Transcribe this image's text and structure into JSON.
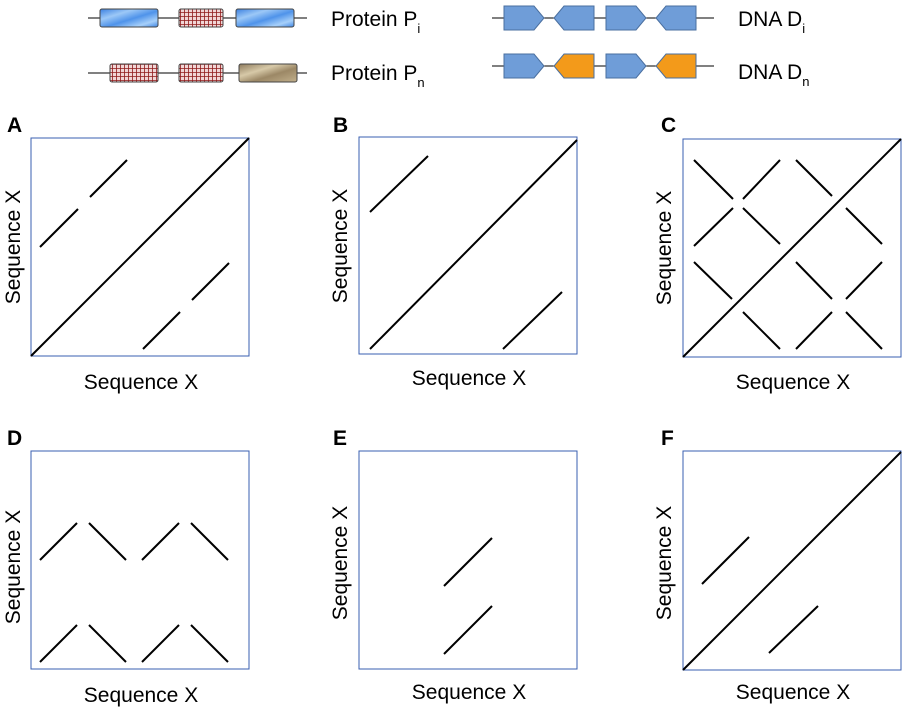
{
  "legend": {
    "protein_i": {
      "label": "Protein P",
      "subscript": "i",
      "domains": [
        "water",
        "grid",
        "water"
      ]
    },
    "protein_n": {
      "label": "Protein P",
      "subscript": "n",
      "domains": [
        "grid",
        "grid",
        "stone"
      ]
    },
    "dna_i": {
      "label": "DNA D",
      "subscript": "i",
      "arrows": [
        "right",
        "left",
        "right",
        "left"
      ],
      "arrow_colors": [
        "#6f9dd8",
        "#6f9dd8",
        "#6f9dd8",
        "#6f9dd8"
      ]
    },
    "dna_n": {
      "label": "DNA D",
      "subscript": "n",
      "arrows": [
        "right",
        "left",
        "right",
        "left"
      ],
      "arrow_colors": [
        "#6f9dd8",
        "#f39a1a",
        "#6f9dd8",
        "#f39a1a"
      ]
    }
  },
  "colors": {
    "dna_blue": "#6f9dd8",
    "dna_orange": "#f39a1a",
    "frame_border": "#3a5fb0"
  },
  "panels": [
    {
      "letter": "A",
      "xlabel": "Sequence X",
      "ylabel": "Sequence X"
    },
    {
      "letter": "B",
      "xlabel": "Sequence X",
      "ylabel": "Sequence X"
    },
    {
      "letter": "C",
      "xlabel": "Sequence X",
      "ylabel": "Sequence X"
    },
    {
      "letter": "D",
      "xlabel": "Sequence X",
      "ylabel": "Sequence X"
    },
    {
      "letter": "E",
      "xlabel": "Sequence X",
      "ylabel": "Sequence X"
    },
    {
      "letter": "F",
      "xlabel": "Sequence X",
      "ylabel": "Sequence X"
    }
  ]
}
